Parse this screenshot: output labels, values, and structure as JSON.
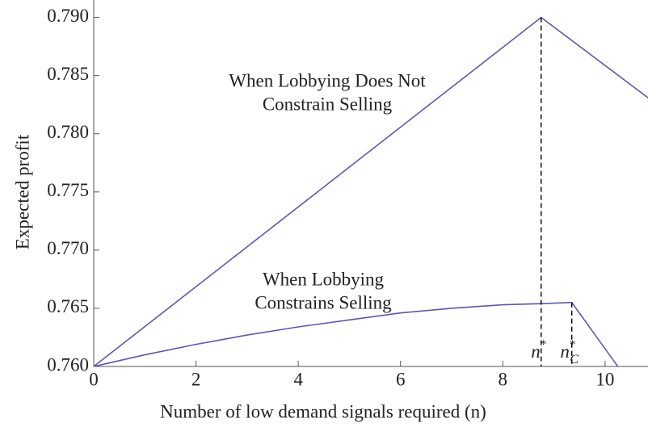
{
  "chart_data": {
    "type": "line",
    "xlabel": "Number of low demand signals required (n)",
    "ylabel": "Expected profit",
    "xlim": [
      0,
      10.84
    ],
    "ylim": [
      0.76,
      0.7915
    ],
    "xticks": [
      0,
      2,
      4,
      6,
      8,
      10
    ],
    "yticks": [
      {
        "value": 0.76,
        "label": "0.760"
      },
      {
        "value": 0.765,
        "label": "0.765"
      },
      {
        "value": 0.77,
        "label": "0.770"
      },
      {
        "value": 0.775,
        "label": "0.775"
      },
      {
        "value": 0.78,
        "label": "0.780"
      },
      {
        "value": 0.785,
        "label": "0.785"
      },
      {
        "value": 0.79,
        "label": "0.790"
      }
    ],
    "series": [
      {
        "name": "When Lobbying Does Not Constrain Selling",
        "color": "#5a5aa8",
        "x": [
          0,
          8.75,
          10.84
        ],
        "values": [
          0.76,
          0.79,
          0.7831
        ]
      },
      {
        "name": "When Lobbying Constrains Selling",
        "color": "#5a5aa8",
        "x": [
          0,
          1,
          2,
          3,
          4,
          5,
          6,
          7,
          8,
          8.75,
          9.35,
          10.25
        ],
        "values": [
          0.76,
          0.761,
          0.7619,
          0.7627,
          0.7634,
          0.764,
          0.7646,
          0.765,
          0.7653,
          0.7654,
          0.7655,
          0.76
        ]
      }
    ],
    "annotations": [
      {
        "lines": [
          "When Lobbying Does Not",
          "Constrain Selling"
        ]
      },
      {
        "lines": [
          "When Lobbying",
          "Constrains Selling"
        ]
      }
    ],
    "markers": [
      {
        "x": 8.75,
        "y": 0.79,
        "text": "n",
        "sup": "*"
      },
      {
        "x": 9.35,
        "y": 0.7655,
        "text": "n",
        "sup": "*",
        "sub": "C"
      }
    ]
  }
}
